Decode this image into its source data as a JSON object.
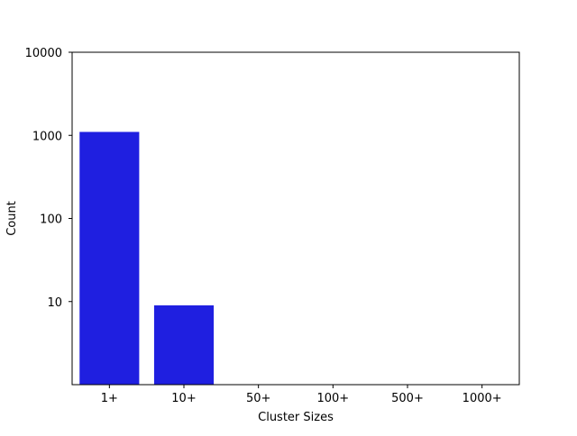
{
  "chart_data": {
    "type": "bar",
    "categories": [
      "1+",
      "10+",
      "50+",
      "100+",
      "500+",
      "1000+"
    ],
    "values": [
      1100,
      9,
      0,
      0,
      0,
      0
    ],
    "xlabel": "Cluster Sizes",
    "ylabel": "Count",
    "yscale": "log",
    "ylim": [
      1,
      10000
    ],
    "yticks": [
      10,
      100,
      1000,
      10000
    ],
    "ytick_labels": [
      "10",
      "100",
      "1000",
      "10000"
    ],
    "grid": false,
    "bar_color": "#1f1fe0"
  }
}
